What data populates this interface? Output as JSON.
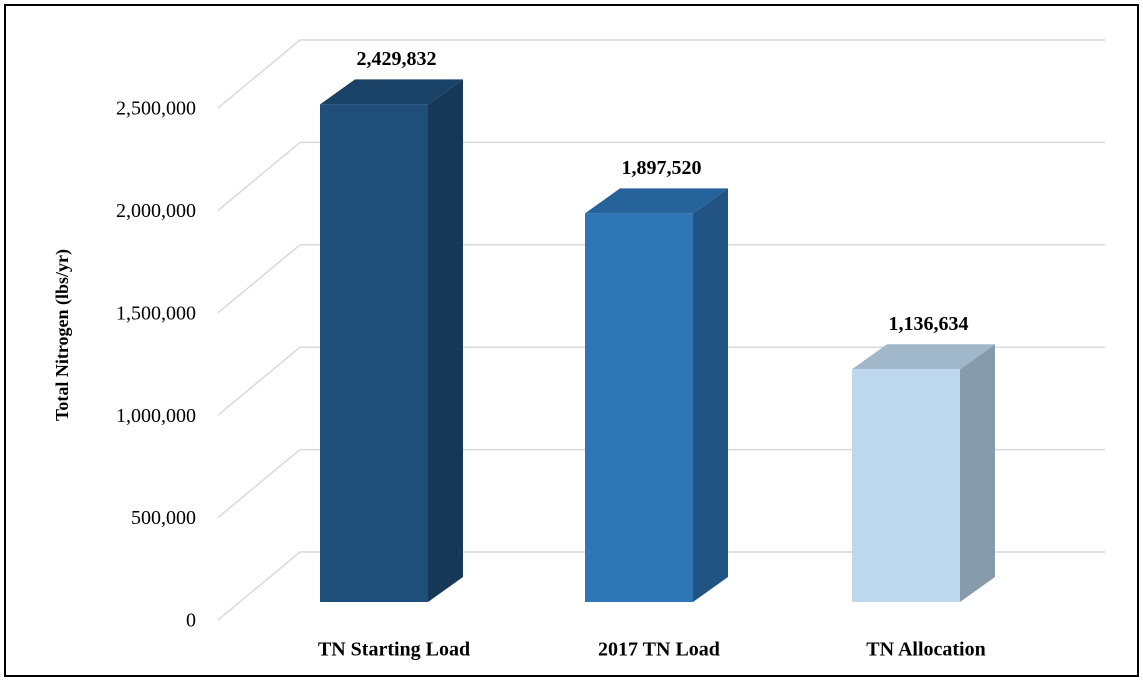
{
  "chart_data": {
    "type": "bar3d",
    "y_label": "Total Nitrogen  (lbs/yr)",
    "categories": [
      "TN Starting Load",
      "2017 TN Load",
      "TN Allocation"
    ],
    "values": [
      2429832,
      1897520,
      1136634
    ],
    "value_labels": [
      "2,429,832",
      "1,897,520",
      "1,136,634"
    ],
    "colors": [
      "#1f4e79",
      "#2e75b6",
      "#bdd7ee"
    ],
    "ylim": [
      0,
      2500000
    ],
    "yticks": [
      0,
      {
        "value": 500000,
        "label": "500,000"
      },
      {
        "value": 1000000,
        "label": "1,000,000"
      },
      {
        "value": 1500000,
        "label": "1,500,000"
      },
      {
        "value": 2000000,
        "label": "2,000,000"
      },
      {
        "value": 2500000,
        "label": "2,500,000"
      }
    ],
    "grid": true
  }
}
